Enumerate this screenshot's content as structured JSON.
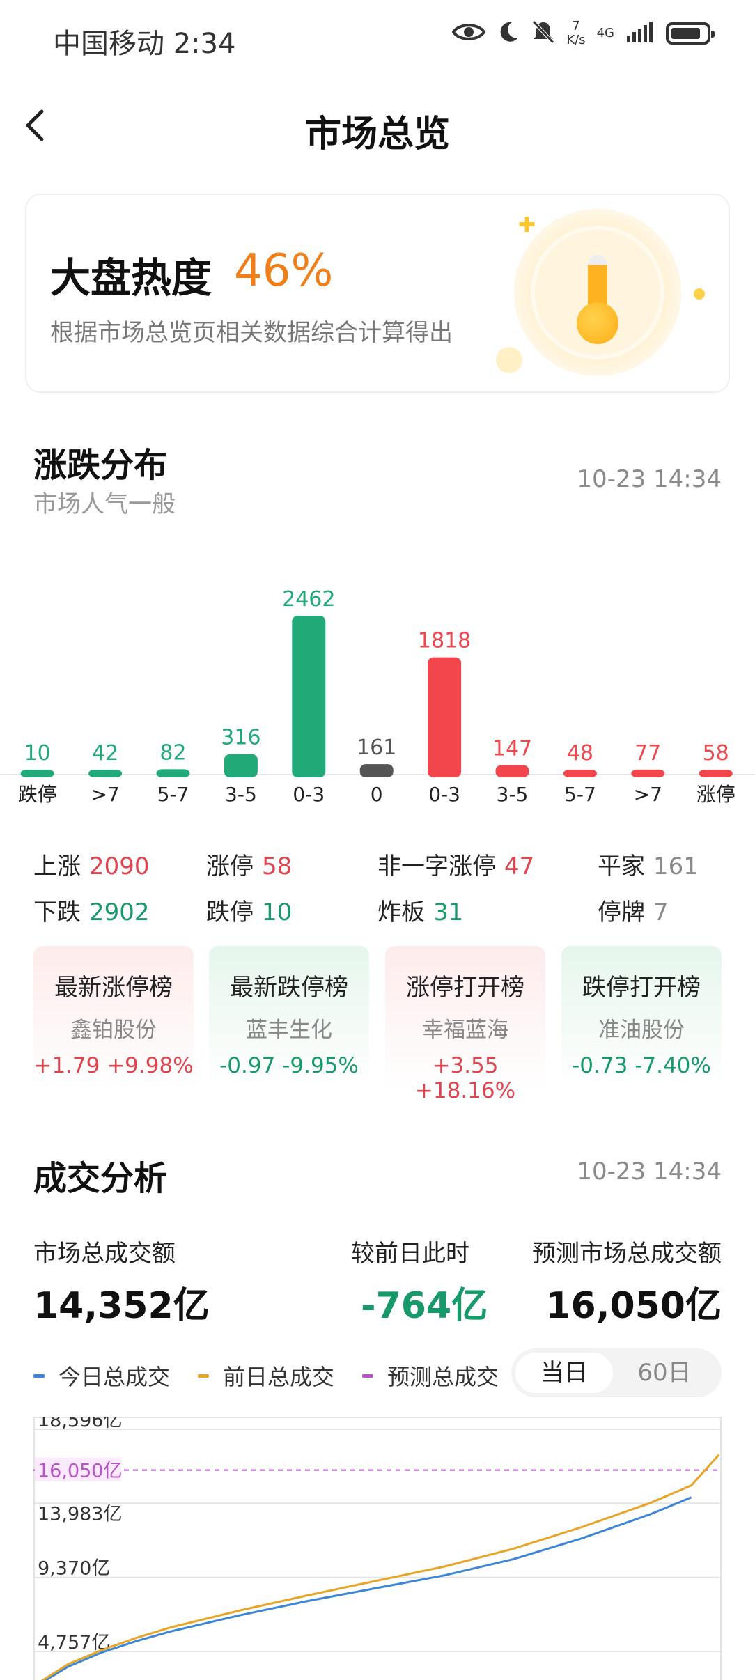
{
  "status_bar": {
    "carrier_time": "中国移动 2:34",
    "net_speed_value": "7",
    "net_speed_unit": "K/s",
    "network": "4G",
    "battery_level": 0.85
  },
  "header": {
    "title": "市场总览"
  },
  "heat": {
    "title": "大盘热度",
    "value": "46%",
    "desc": "根据市场总览页相关数据综合计算得出"
  },
  "distribution": {
    "title": "涨跌分布",
    "subtitle": "市场人气一般",
    "time": "10-23 14:34",
    "stats": {
      "up_label": "上涨",
      "up": "2090",
      "limit_up_label": "涨停",
      "limit_up": "58",
      "non_one_label": "非一字涨停",
      "non_one": "47",
      "flat_label": "平家",
      "flat": "161",
      "down_label": "下跌",
      "down": "2902",
      "limit_down_label": "跌停",
      "limit_down": "10",
      "broken_label": "炸板",
      "broken": "31",
      "halt_label": "停牌",
      "halt": "7"
    }
  },
  "rank_cards": [
    {
      "title": "最新涨停榜",
      "name": "鑫铂股份",
      "change": "+1.79 +9.98%"
    },
    {
      "title": "最新跌停榜",
      "name": "蓝丰生化",
      "change": "-0.97 -9.95%"
    },
    {
      "title": "涨停打开榜",
      "name": "幸福蓝海",
      "change": "+3.55 +18.16%"
    },
    {
      "title": "跌停打开榜",
      "name": "准油股份",
      "change": "-0.73 -7.40%"
    }
  ],
  "volume": {
    "title": "成交分析",
    "time": "10-23 14:34",
    "total_label": "市场总成交额",
    "total": "14,352亿",
    "diff_label": "较前日此时",
    "diff": "-764亿",
    "forecast_label": "预测市场总成交额",
    "forecast": "16,050亿",
    "legend": [
      "今日总成交",
      "前日总成交",
      "预测总成交"
    ],
    "tabs": [
      "当日",
      "60日"
    ]
  },
  "colors": {
    "up": "#f2454c",
    "down": "#22a978",
    "flat": "#555555",
    "orange": "#f07f1a",
    "today_line": "#3b86d8",
    "prev_line": "#e9a425",
    "forecast_line": "#b854c8"
  },
  "chart_data": [
    {
      "type": "bar",
      "categories": [
        "跌停",
        ">7",
        "5-7",
        "3-5",
        "0-3",
        "0",
        "0-3",
        "3-5",
        "5-7",
        ">7",
        "涨停"
      ],
      "values": [
        10,
        42,
        82,
        316,
        2462,
        161,
        1818,
        147,
        48,
        77,
        58
      ],
      "bar_colors": [
        "#22a978",
        "#22a978",
        "#22a978",
        "#22a978",
        "#22a978",
        "#555555",
        "#f2454c",
        "#f2454c",
        "#f2454c",
        "#f2454c",
        "#f2454c"
      ]
    },
    {
      "type": "line",
      "y_tick_labels": [
        "18,596亿",
        "13,983亿",
        "9,370亿",
        "4,757亿"
      ],
      "y_ticks": [
        18596,
        13983,
        9370,
        4757
      ],
      "forecast_label": "16,050亿",
      "forecast_value": 16050,
      "x": [
        0,
        0.05,
        0.1,
        0.15,
        0.2,
        0.3,
        0.4,
        0.5,
        0.6,
        0.7,
        0.8,
        0.9,
        0.96,
        1
      ],
      "series": [
        {
          "name": "今日总成交",
          "values": [
            2500,
            3800,
            4700,
            5400,
            6000,
            7000,
            7900,
            8700,
            9500,
            10500,
            11800,
            13300,
            14352,
            null
          ]
        },
        {
          "name": "前日总成交",
          "values": [
            2600,
            3950,
            4850,
            5600,
            6250,
            7300,
            8250,
            9150,
            10050,
            11150,
            12500,
            14000,
            15100,
            17000
          ]
        }
      ],
      "grid": true
    }
  ]
}
